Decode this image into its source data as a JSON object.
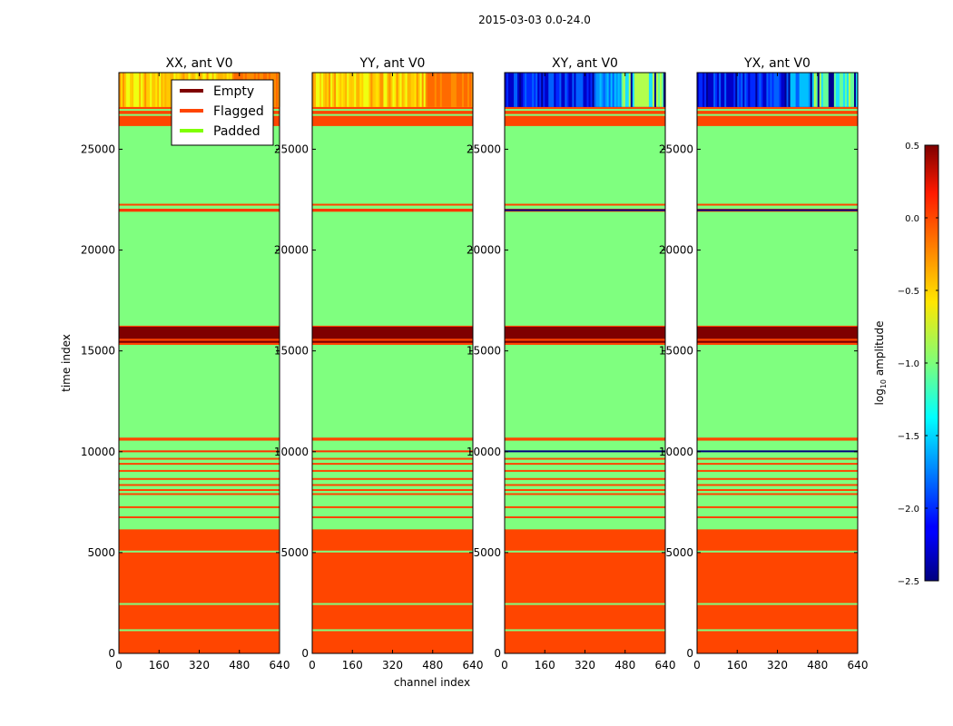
{
  "figure_title": "2015-03-03 0.0-24.0",
  "colors": {
    "padded": "#7fff7f",
    "flagged": "#ff4500",
    "empty": "#7f0000",
    "padded_legend": "#7fff00",
    "frame": "#000000"
  },
  "chart_data": {
    "type": "heatmap",
    "title": "2015-03-03 0.0-24.0",
    "xlabel": "channel index",
    "ylabel": "time index",
    "xlim": [
      0,
      640
    ],
    "ylim": [
      0,
      28800
    ],
    "x_ticks": [
      0,
      160,
      320,
      480,
      640
    ],
    "y_ticks": [
      0,
      5000,
      10000,
      15000,
      20000,
      25000
    ],
    "y_tick_labels": [
      "0",
      "5000",
      "10000",
      "15000",
      "20000",
      "25000"
    ],
    "panels": [
      {
        "title": "XX, ant V0",
        "data_palette": "warm",
        "outlier_line": "#ff3300"
      },
      {
        "title": "YY, ant V0",
        "data_palette": "warm",
        "outlier_line": "#ff3300"
      },
      {
        "title": "XY, ant V0",
        "data_palette": "cool",
        "outlier_line": "#000080"
      },
      {
        "title": "YX, ant V0",
        "data_palette": "cool",
        "outlier_line": "#000080"
      }
    ],
    "base_category": "flagged",
    "bands": [
      {
        "y0": 6150,
        "y1": 10550,
        "category": "padded"
      },
      {
        "y0": 10550,
        "y1": 10550,
        "category": "padded"
      },
      {
        "y0": 10700,
        "y1": 15300,
        "category": "padded"
      },
      {
        "y0": 15600,
        "y1": 16200,
        "category": "empty"
      },
      {
        "y0": 15400,
        "y1": 15500,
        "category": "empty"
      },
      {
        "y0": 16250,
        "y1": 21900,
        "category": "padded"
      },
      {
        "y0": 22050,
        "y1": 26150,
        "category": "padded"
      }
    ],
    "flag_lines": [
      5050,
      2450,
      1150,
      7900,
      8100,
      8350,
      8650,
      9050,
      9400,
      9650,
      6750,
      7250,
      22250,
      26700,
      26950
    ],
    "data_region": [
      27100,
      28800
    ],
    "data_lines": [
      21980,
      10020
    ],
    "legend": [
      {
        "label": "Empty",
        "category": "empty"
      },
      {
        "label": "Flagged",
        "category": "flagged"
      },
      {
        "label": "Padded",
        "category": "padded_legend"
      }
    ],
    "colorbar": {
      "label": "log10 amplitude",
      "label_main": "log",
      "label_sub": "10",
      "label_rest": " amplitude",
      "range": [
        -2.5,
        0.5
      ],
      "ticks": [
        0.5,
        0.0,
        -0.5,
        -1.0,
        -1.5,
        -2.0,
        -2.5
      ],
      "tick_labels": [
        "0.5",
        "0.0",
        "−0.5",
        "−1.0",
        "−1.5",
        "−2.0",
        "−2.5"
      ],
      "colormap": "jet"
    }
  }
}
